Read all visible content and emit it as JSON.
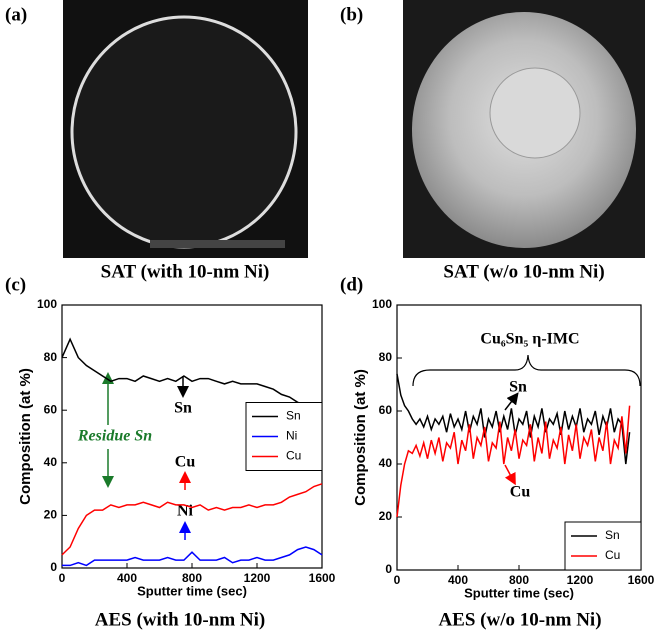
{
  "images": [
    {
      "label": "(a)",
      "caption": "SAT (with 10-nm Ni)"
    },
    {
      "label": "(b)",
      "caption": "SAT (w/o 10-nm Ni)"
    }
  ],
  "chart_data": [
    {
      "type": "line",
      "label": "(c)",
      "title": "AES (with 10-nm Ni)",
      "x_label": "Sputter time (sec)",
      "y_label": "Composition (at %)",
      "xlim": [
        0,
        1600
      ],
      "xticks": [
        0,
        400,
        800,
        1200,
        1600
      ],
      "ylim": [
        0,
        100
      ],
      "yticks": [
        0,
        20,
        40,
        60,
        80,
        100
      ],
      "grid": false,
      "legend": "center right",
      "annotations": [
        "Sn",
        "Residue Sn",
        "Cu",
        "Ni"
      ],
      "x": [
        0,
        50,
        100,
        150,
        200,
        250,
        300,
        350,
        400,
        450,
        500,
        550,
        600,
        650,
        700,
        750,
        800,
        850,
        900,
        950,
        1000,
        1050,
        1100,
        1150,
        1200,
        1250,
        1300,
        1350,
        1400,
        1450,
        1500,
        1550,
        1600
      ],
      "series": [
        {
          "name": "Sn",
          "color": "#000000",
          "values": [
            80,
            87,
            80,
            77,
            75,
            73,
            71,
            72,
            72,
            71,
            73,
            72,
            71,
            72,
            71,
            73,
            71,
            72,
            72,
            71,
            70,
            71,
            70,
            70,
            70,
            69,
            68,
            66,
            65,
            63,
            62,
            62,
            62
          ]
        },
        {
          "name": "Ni",
          "color": "#0000ff",
          "values": [
            1,
            1,
            2,
            1,
            3,
            3,
            3,
            3,
            3,
            4,
            3,
            3,
            3,
            4,
            3,
            3,
            6,
            3,
            3,
            3,
            4,
            2,
            3,
            3,
            4,
            3,
            3,
            4,
            5,
            7,
            8,
            7,
            5
          ]
        },
        {
          "name": "Cu",
          "color": "#ff0000",
          "values": [
            5,
            8,
            15,
            20,
            22,
            22,
            24,
            23,
            24,
            24,
            25,
            24,
            23,
            25,
            24,
            24,
            23,
            24,
            22,
            23,
            22,
            23,
            23,
            24,
            23,
            24,
            24,
            25,
            27,
            28,
            29,
            31,
            32
          ]
        }
      ]
    },
    {
      "type": "line",
      "label": "(d)",
      "title": "AES (w/o 10-nm Ni)",
      "x_label": "Sputter time (sec)",
      "y_label": "Composition (at %)",
      "xlim": [
        0,
        1600
      ],
      "xticks": [
        0,
        400,
        800,
        1200,
        1600
      ],
      "ylim": [
        0,
        100
      ],
      "yticks": [
        0,
        20,
        40,
        60,
        80,
        100
      ],
      "grid": false,
      "legend": "lower right",
      "annotations": [
        "Cu₆Sn₅ η-IMC",
        "Sn",
        "Cu"
      ],
      "x": [
        0,
        25,
        50,
        75,
        100,
        125,
        150,
        175,
        200,
        225,
        250,
        275,
        300,
        325,
        350,
        375,
        400,
        425,
        450,
        475,
        500,
        525,
        550,
        575,
        600,
        625,
        650,
        675,
        700,
        725,
        750,
        775,
        800,
        825,
        850,
        875,
        900,
        925,
        950,
        975,
        1000,
        1025,
        1050,
        1075,
        1100,
        1125,
        1150,
        1175,
        1200,
        1225,
        1250,
        1275,
        1300,
        1325,
        1350,
        1375,
        1400,
        1425,
        1450,
        1475,
        1500,
        1525
      ],
      "series": [
        {
          "name": "Sn",
          "color": "#000000",
          "values": [
            74,
            66,
            62,
            60,
            57,
            55,
            57,
            54,
            58,
            53,
            57,
            55,
            58,
            52,
            59,
            54,
            57,
            53,
            60,
            52,
            58,
            55,
            61,
            50,
            57,
            54,
            60,
            52,
            58,
            53,
            61,
            51,
            57,
            55,
            60,
            50,
            58,
            54,
            61,
            52,
            57,
            55,
            59,
            51,
            60,
            53,
            58,
            54,
            61,
            52,
            57,
            55,
            60,
            51,
            58,
            54,
            61,
            52,
            57,
            55,
            40,
            52
          ]
        },
        {
          "name": "Cu",
          "color": "#ff0000",
          "values": [
            20,
            32,
            40,
            45,
            44,
            47,
            43,
            48,
            42,
            49,
            44,
            50,
            41,
            48,
            46,
            52,
            40,
            49,
            45,
            55,
            42,
            50,
            47,
            54,
            41,
            48,
            46,
            56,
            40,
            50,
            45,
            53,
            42,
            49,
            47,
            55,
            41,
            50,
            44,
            56,
            42,
            49,
            46,
            54,
            40,
            51,
            45,
            55,
            42,
            50,
            47,
            53,
            41,
            50,
            45,
            56,
            40,
            49,
            46,
            58,
            44,
            62
          ]
        }
      ]
    }
  ]
}
